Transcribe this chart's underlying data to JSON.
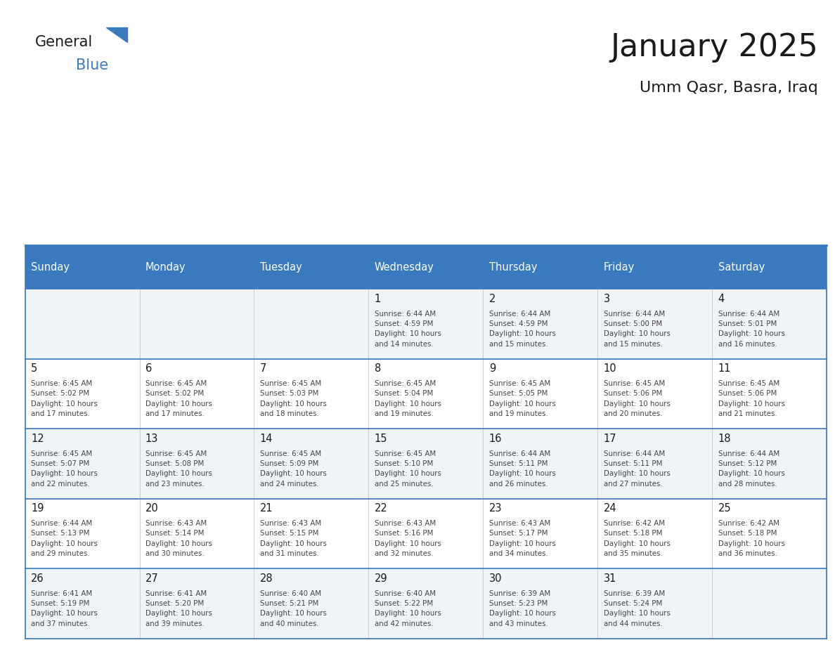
{
  "title": "January 2025",
  "subtitle": "Umm Qasr, Basra, Iraq",
  "days_of_week": [
    "Sunday",
    "Monday",
    "Tuesday",
    "Wednesday",
    "Thursday",
    "Friday",
    "Saturday"
  ],
  "header_bg": "#3a7abf",
  "header_text": "#ffffff",
  "cell_bg_even": "#f0f4f8",
  "cell_bg_odd": "#ffffff",
  "cell_text": "#333333",
  "day_num_color": "#1a1a1a",
  "grid_color": "#3a7abf",
  "title_color": "#1a1a1a",
  "subtitle_color": "#1a1a1a",
  "logo_general_color": "#1a1a1a",
  "logo_blue_color": "#3a7abf",
  "logo_triangle_color": "#3a7abf",
  "weeks": [
    [
      {
        "day": 0,
        "info": ""
      },
      {
        "day": 0,
        "info": ""
      },
      {
        "day": 0,
        "info": ""
      },
      {
        "day": 1,
        "info": "Sunrise: 6:44 AM\nSunset: 4:59 PM\nDaylight: 10 hours\nand 14 minutes."
      },
      {
        "day": 2,
        "info": "Sunrise: 6:44 AM\nSunset: 4:59 PM\nDaylight: 10 hours\nand 15 minutes."
      },
      {
        "day": 3,
        "info": "Sunrise: 6:44 AM\nSunset: 5:00 PM\nDaylight: 10 hours\nand 15 minutes."
      },
      {
        "day": 4,
        "info": "Sunrise: 6:44 AM\nSunset: 5:01 PM\nDaylight: 10 hours\nand 16 minutes."
      }
    ],
    [
      {
        "day": 5,
        "info": "Sunrise: 6:45 AM\nSunset: 5:02 PM\nDaylight: 10 hours\nand 17 minutes."
      },
      {
        "day": 6,
        "info": "Sunrise: 6:45 AM\nSunset: 5:02 PM\nDaylight: 10 hours\nand 17 minutes."
      },
      {
        "day": 7,
        "info": "Sunrise: 6:45 AM\nSunset: 5:03 PM\nDaylight: 10 hours\nand 18 minutes."
      },
      {
        "day": 8,
        "info": "Sunrise: 6:45 AM\nSunset: 5:04 PM\nDaylight: 10 hours\nand 19 minutes."
      },
      {
        "day": 9,
        "info": "Sunrise: 6:45 AM\nSunset: 5:05 PM\nDaylight: 10 hours\nand 19 minutes."
      },
      {
        "day": 10,
        "info": "Sunrise: 6:45 AM\nSunset: 5:06 PM\nDaylight: 10 hours\nand 20 minutes."
      },
      {
        "day": 11,
        "info": "Sunrise: 6:45 AM\nSunset: 5:06 PM\nDaylight: 10 hours\nand 21 minutes."
      }
    ],
    [
      {
        "day": 12,
        "info": "Sunrise: 6:45 AM\nSunset: 5:07 PM\nDaylight: 10 hours\nand 22 minutes."
      },
      {
        "day": 13,
        "info": "Sunrise: 6:45 AM\nSunset: 5:08 PM\nDaylight: 10 hours\nand 23 minutes."
      },
      {
        "day": 14,
        "info": "Sunrise: 6:45 AM\nSunset: 5:09 PM\nDaylight: 10 hours\nand 24 minutes."
      },
      {
        "day": 15,
        "info": "Sunrise: 6:45 AM\nSunset: 5:10 PM\nDaylight: 10 hours\nand 25 minutes."
      },
      {
        "day": 16,
        "info": "Sunrise: 6:44 AM\nSunset: 5:11 PM\nDaylight: 10 hours\nand 26 minutes."
      },
      {
        "day": 17,
        "info": "Sunrise: 6:44 AM\nSunset: 5:11 PM\nDaylight: 10 hours\nand 27 minutes."
      },
      {
        "day": 18,
        "info": "Sunrise: 6:44 AM\nSunset: 5:12 PM\nDaylight: 10 hours\nand 28 minutes."
      }
    ],
    [
      {
        "day": 19,
        "info": "Sunrise: 6:44 AM\nSunset: 5:13 PM\nDaylight: 10 hours\nand 29 minutes."
      },
      {
        "day": 20,
        "info": "Sunrise: 6:43 AM\nSunset: 5:14 PM\nDaylight: 10 hours\nand 30 minutes."
      },
      {
        "day": 21,
        "info": "Sunrise: 6:43 AM\nSunset: 5:15 PM\nDaylight: 10 hours\nand 31 minutes."
      },
      {
        "day": 22,
        "info": "Sunrise: 6:43 AM\nSunset: 5:16 PM\nDaylight: 10 hours\nand 32 minutes."
      },
      {
        "day": 23,
        "info": "Sunrise: 6:43 AM\nSunset: 5:17 PM\nDaylight: 10 hours\nand 34 minutes."
      },
      {
        "day": 24,
        "info": "Sunrise: 6:42 AM\nSunset: 5:18 PM\nDaylight: 10 hours\nand 35 minutes."
      },
      {
        "day": 25,
        "info": "Sunrise: 6:42 AM\nSunset: 5:18 PM\nDaylight: 10 hours\nand 36 minutes."
      }
    ],
    [
      {
        "day": 26,
        "info": "Sunrise: 6:41 AM\nSunset: 5:19 PM\nDaylight: 10 hours\nand 37 minutes."
      },
      {
        "day": 27,
        "info": "Sunrise: 6:41 AM\nSunset: 5:20 PM\nDaylight: 10 hours\nand 39 minutes."
      },
      {
        "day": 28,
        "info": "Sunrise: 6:40 AM\nSunset: 5:21 PM\nDaylight: 10 hours\nand 40 minutes."
      },
      {
        "day": 29,
        "info": "Sunrise: 6:40 AM\nSunset: 5:22 PM\nDaylight: 10 hours\nand 42 minutes."
      },
      {
        "day": 30,
        "info": "Sunrise: 6:39 AM\nSunset: 5:23 PM\nDaylight: 10 hours\nand 43 minutes."
      },
      {
        "day": 31,
        "info": "Sunrise: 6:39 AM\nSunset: 5:24 PM\nDaylight: 10 hours\nand 44 minutes."
      },
      {
        "day": 0,
        "info": ""
      }
    ]
  ]
}
